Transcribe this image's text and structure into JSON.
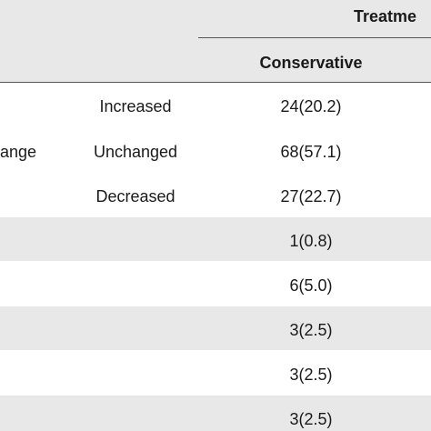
{
  "header": {
    "group_title": "Treatme",
    "column_title": "Conservative"
  },
  "change_block": {
    "row_label": "ange",
    "rows": [
      {
        "category": "Increased",
        "value": "24(20.2)"
      },
      {
        "category": "Unchanged",
        "value": "68(57.1)"
      },
      {
        "category": "Decreased",
        "value": "27(22.7)"
      }
    ]
  },
  "lower_rows": [
    {
      "value": "1(0.8)"
    },
    {
      "value": "6(5.0)"
    },
    {
      "value": "3(2.5)"
    },
    {
      "value": "3(2.5)"
    },
    {
      "value": "3(2.5)"
    }
  ],
  "colors": {
    "shade": "#e8e8e8",
    "rule": "#555555",
    "text": "#1a1a1a"
  }
}
